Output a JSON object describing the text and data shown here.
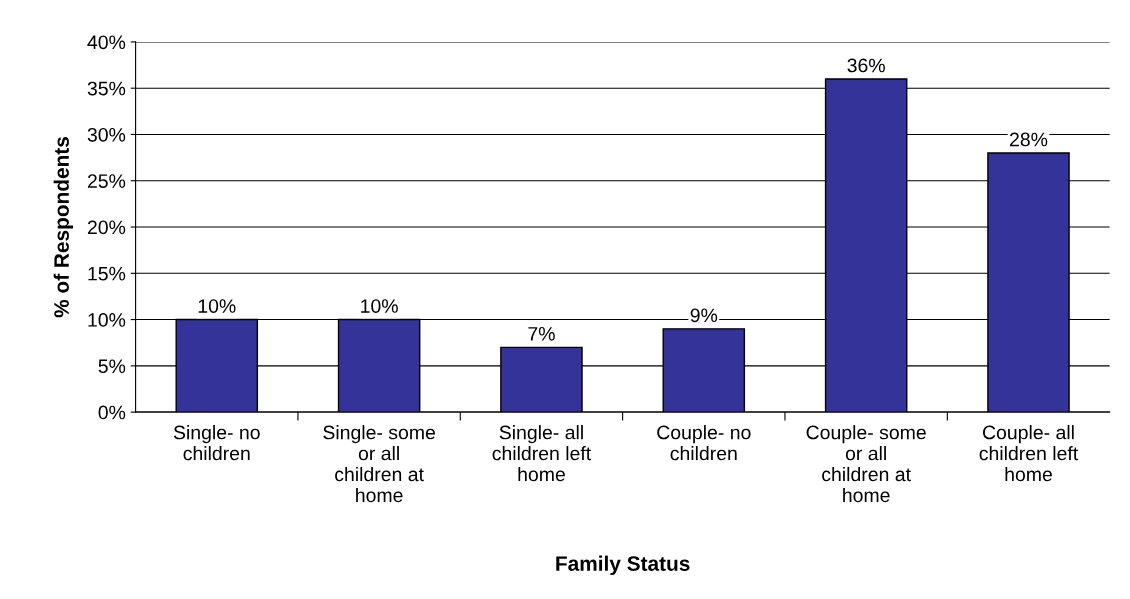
{
  "chart_data": {
    "type": "bar",
    "xlabel": "Family Status",
    "ylabel": "% of Respondents",
    "categories": [
      "Single- no children",
      "Single- some or all children at home",
      "Single- all children left home",
      "Couple- no children",
      "Couple- some or all children at home",
      "Couple- all children left home"
    ],
    "values": [
      10,
      10,
      7,
      9,
      36,
      28
    ],
    "color": "#333399",
    "data_labels": true,
    "value_labels": [
      "10%",
      "10%",
      "7%",
      "9%",
      "36%",
      "28%"
    ],
    "ylim": [
      0,
      40
    ],
    "yticks": [
      {
        "value": 0,
        "label": "0%"
      },
      {
        "value": 5,
        "label": "5%"
      },
      {
        "value": 10,
        "label": "10%"
      },
      {
        "value": 15,
        "label": "15%"
      },
      {
        "value": 20,
        "label": "20%"
      },
      {
        "value": 25,
        "label": "25%"
      },
      {
        "value": 30,
        "label": "30%"
      },
      {
        "value": 35,
        "label": "35%"
      },
      {
        "value": 40,
        "label": "40%"
      }
    ],
    "grid": "y",
    "legend": false
  }
}
